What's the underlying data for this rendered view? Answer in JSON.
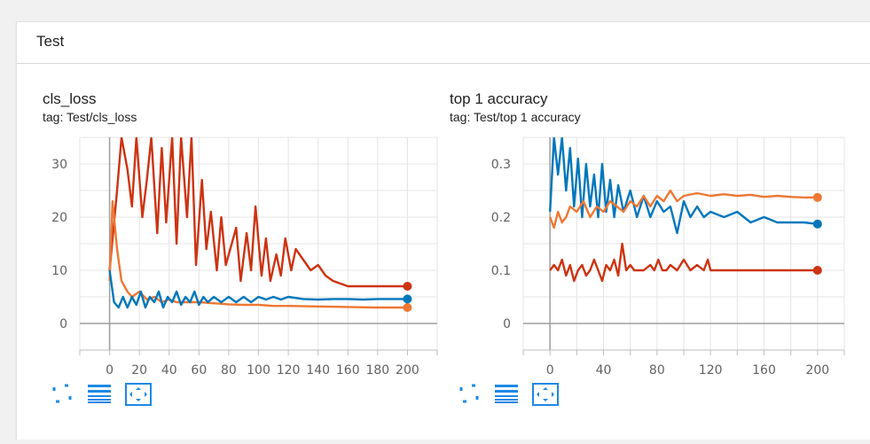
{
  "panel": {
    "title": "Test"
  },
  "cards": [
    {
      "title": "cls_loss",
      "tag": "tag: Test/cls_loss"
    },
    {
      "title": "top 1 accuracy",
      "tag": "tag: Test/top 1 accuracy"
    }
  ],
  "toolbar": {
    "expand_icon": "fullscreen-icon",
    "log_icon": "menu-lines-icon",
    "fit_icon": "fit-domain-icon",
    "accent": "#1e88e5"
  },
  "colors": {
    "series_blue": "#0077bb",
    "series_orange": "#ee7733",
    "series_red": "#cc3311"
  },
  "chart_data": [
    {
      "type": "line",
      "title": "cls_loss",
      "subtitle": "tag: Test/cls_loss",
      "xlabel": "",
      "ylabel": "",
      "xlim": [
        -20,
        220
      ],
      "ylim": [
        -5,
        35
      ],
      "x_ticks": [
        0,
        20,
        40,
        60,
        80,
        100,
        120,
        140,
        160,
        180,
        200
      ],
      "y_ticks": [
        0,
        10,
        20,
        30
      ],
      "grid": true,
      "series": [
        {
          "color": "#cc3311",
          "points": [
            [
              0,
              10
            ],
            [
              5,
              25
            ],
            [
              8,
              35
            ],
            [
              12,
              29
            ],
            [
              15,
              22
            ],
            [
              18,
              35
            ],
            [
              22,
              20
            ],
            [
              25,
              27
            ],
            [
              28,
              35
            ],
            [
              32,
              17
            ],
            [
              35,
              33
            ],
            [
              38,
              19
            ],
            [
              42,
              35
            ],
            [
              45,
              15
            ],
            [
              48,
              35
            ],
            [
              52,
              20
            ],
            [
              55,
              35
            ],
            [
              58,
              11
            ],
            [
              62,
              27
            ],
            [
              65,
              14
            ],
            [
              68,
              21
            ],
            [
              72,
              10
            ],
            [
              75,
              20
            ],
            [
              78,
              11
            ],
            [
              82,
              15
            ],
            [
              85,
              18
            ],
            [
              88,
              8
            ],
            [
              92,
              17
            ],
            [
              95,
              10
            ],
            [
              98,
              22
            ],
            [
              102,
              9
            ],
            [
              105,
              16
            ],
            [
              108,
              8
            ],
            [
              112,
              13
            ],
            [
              115,
              9
            ],
            [
              118,
              16
            ],
            [
              122,
              10
            ],
            [
              125,
              14
            ],
            [
              130,
              12
            ],
            [
              135,
              10
            ],
            [
              140,
              11
            ],
            [
              145,
              9
            ],
            [
              150,
              8
            ],
            [
              155,
              7.5
            ],
            [
              160,
              7
            ],
            [
              170,
              7
            ],
            [
              180,
              7
            ],
            [
              190,
              7
            ],
            [
              200,
              7
            ]
          ],
          "end": [
            200,
            7
          ]
        },
        {
          "color": "#ee7733",
          "points": [
            [
              0,
              8
            ],
            [
              2,
              23
            ],
            [
              5,
              14
            ],
            [
              8,
              8
            ],
            [
              12,
              6
            ],
            [
              15,
              5
            ],
            [
              20,
              6
            ],
            [
              25,
              4.5
            ],
            [
              30,
              5
            ],
            [
              35,
              4
            ],
            [
              40,
              4.5
            ],
            [
              45,
              4
            ],
            [
              50,
              4
            ],
            [
              60,
              4
            ],
            [
              70,
              3.8
            ],
            [
              80,
              3.6
            ],
            [
              90,
              3.5
            ],
            [
              100,
              3.5
            ],
            [
              110,
              3.3
            ],
            [
              120,
              3.3
            ],
            [
              140,
              3.2
            ],
            [
              160,
              3.1
            ],
            [
              180,
              3
            ],
            [
              200,
              3
            ]
          ],
          "end": [
            200,
            3
          ]
        },
        {
          "color": "#0077bb",
          "points": [
            [
              0,
              10
            ],
            [
              3,
              4
            ],
            [
              6,
              3
            ],
            [
              9,
              5
            ],
            [
              12,
              3
            ],
            [
              15,
              5
            ],
            [
              18,
              3.5
            ],
            [
              21,
              6
            ],
            [
              24,
              3
            ],
            [
              27,
              5
            ],
            [
              30,
              4
            ],
            [
              33,
              6
            ],
            [
              36,
              3
            ],
            [
              39,
              5
            ],
            [
              42,
              4
            ],
            [
              45,
              6
            ],
            [
              48,
              3.5
            ],
            [
              51,
              5
            ],
            [
              54,
              4
            ],
            [
              57,
              6
            ],
            [
              60,
              3.5
            ],
            [
              63,
              5
            ],
            [
              66,
              4
            ],
            [
              70,
              5
            ],
            [
              75,
              4
            ],
            [
              80,
              5
            ],
            [
              85,
              4
            ],
            [
              90,
              5
            ],
            [
              95,
              4
            ],
            [
              100,
              5
            ],
            [
              105,
              4.5
            ],
            [
              110,
              5
            ],
            [
              115,
              4.5
            ],
            [
              120,
              5
            ],
            [
              130,
              4.6
            ],
            [
              140,
              4.5
            ],
            [
              150,
              4.6
            ],
            [
              160,
              4.6
            ],
            [
              170,
              4.5
            ],
            [
              180,
              4.6
            ],
            [
              190,
              4.6
            ],
            [
              200,
              4.6
            ]
          ],
          "end": [
            200,
            4.6
          ]
        }
      ]
    },
    {
      "type": "line",
      "title": "top 1 accuracy",
      "subtitle": "tag: Test/top 1 accuracy",
      "xlabel": "",
      "ylabel": "",
      "xlim": [
        -20,
        220
      ],
      "ylim": [
        -0.05,
        0.35
      ],
      "x_ticks": [
        0,
        40,
        80,
        120,
        160,
        200
      ],
      "y_ticks": [
        0,
        0.1,
        0.2,
        0.3
      ],
      "grid": true,
      "series": [
        {
          "color": "#0077bb",
          "points": [
            [
              0,
              0.21
            ],
            [
              3,
              0.35
            ],
            [
              6,
              0.28
            ],
            [
              9,
              0.35
            ],
            [
              12,
              0.25
            ],
            [
              15,
              0.33
            ],
            [
              18,
              0.22
            ],
            [
              21,
              0.31
            ],
            [
              24,
              0.2
            ],
            [
              27,
              0.3
            ],
            [
              30,
              0.22
            ],
            [
              33,
              0.28
            ],
            [
              36,
              0.2
            ],
            [
              39,
              0.3
            ],
            [
              42,
              0.21
            ],
            [
              45,
              0.27
            ],
            [
              48,
              0.2
            ],
            [
              51,
              0.26
            ],
            [
              55,
              0.21
            ],
            [
              60,
              0.25
            ],
            [
              65,
              0.2
            ],
            [
              70,
              0.24
            ],
            [
              75,
              0.2
            ],
            [
              80,
              0.23
            ],
            [
              85,
              0.21
            ],
            [
              90,
              0.22
            ],
            [
              95,
              0.17
            ],
            [
              100,
              0.23
            ],
            [
              105,
              0.2
            ],
            [
              110,
              0.22
            ],
            [
              115,
              0.2
            ],
            [
              120,
              0.21
            ],
            [
              130,
              0.2
            ],
            [
              140,
              0.21
            ],
            [
              150,
              0.19
            ],
            [
              160,
              0.2
            ],
            [
              170,
              0.19
            ],
            [
              180,
              0.19
            ],
            [
              190,
              0.19
            ],
            [
              200,
              0.187
            ]
          ],
          "end": [
            200,
            0.187
          ]
        },
        {
          "color": "#ee7733",
          "points": [
            [
              0,
              0.2
            ],
            [
              3,
              0.18
            ],
            [
              6,
              0.21
            ],
            [
              9,
              0.19
            ],
            [
              12,
              0.2
            ],
            [
              15,
              0.22
            ],
            [
              20,
              0.21
            ],
            [
              25,
              0.23
            ],
            [
              30,
              0.2
            ],
            [
              35,
              0.22
            ],
            [
              40,
              0.21
            ],
            [
              45,
              0.23
            ],
            [
              50,
              0.22
            ],
            [
              55,
              0.21
            ],
            [
              60,
              0.23
            ],
            [
              65,
              0.22
            ],
            [
              70,
              0.24
            ],
            [
              75,
              0.22
            ],
            [
              80,
              0.24
            ],
            [
              85,
              0.23
            ],
            [
              90,
              0.25
            ],
            [
              95,
              0.23
            ],
            [
              100,
              0.24
            ],
            [
              110,
              0.245
            ],
            [
              120,
              0.24
            ],
            [
              130,
              0.243
            ],
            [
              140,
              0.24
            ],
            [
              150,
              0.242
            ],
            [
              160,
              0.238
            ],
            [
              170,
              0.24
            ],
            [
              180,
              0.238
            ],
            [
              190,
              0.237
            ],
            [
              200,
              0.237
            ]
          ],
          "end": [
            200,
            0.237
          ]
        },
        {
          "color": "#cc3311",
          "points": [
            [
              0,
              0.1
            ],
            [
              3,
              0.11
            ],
            [
              6,
              0.1
            ],
            [
              9,
              0.12
            ],
            [
              12,
              0.09
            ],
            [
              15,
              0.11
            ],
            [
              18,
              0.08
            ],
            [
              21,
              0.1
            ],
            [
              24,
              0.11
            ],
            [
              27,
              0.09
            ],
            [
              30,
              0.1
            ],
            [
              33,
              0.12
            ],
            [
              36,
              0.1
            ],
            [
              39,
              0.08
            ],
            [
              42,
              0.11
            ],
            [
              45,
              0.1
            ],
            [
              48,
              0.12
            ],
            [
              51,
              0.09
            ],
            [
              54,
              0.15
            ],
            [
              57,
              0.1
            ],
            [
              60,
              0.11
            ],
            [
              63,
              0.1
            ],
            [
              66,
              0.1
            ],
            [
              70,
              0.1
            ],
            [
              75,
              0.11
            ],
            [
              78,
              0.1
            ],
            [
              81,
              0.12
            ],
            [
              84,
              0.1
            ],
            [
              87,
              0.1
            ],
            [
              90,
              0.11
            ],
            [
              95,
              0.1
            ],
            [
              100,
              0.12
            ],
            [
              105,
              0.1
            ],
            [
              110,
              0.11
            ],
            [
              115,
              0.1
            ],
            [
              118,
              0.12
            ],
            [
              120,
              0.1
            ],
            [
              140,
              0.1
            ],
            [
              160,
              0.1
            ],
            [
              180,
              0.1
            ],
            [
              200,
              0.1
            ]
          ],
          "end": [
            200,
            0.1
          ]
        }
      ]
    }
  ]
}
